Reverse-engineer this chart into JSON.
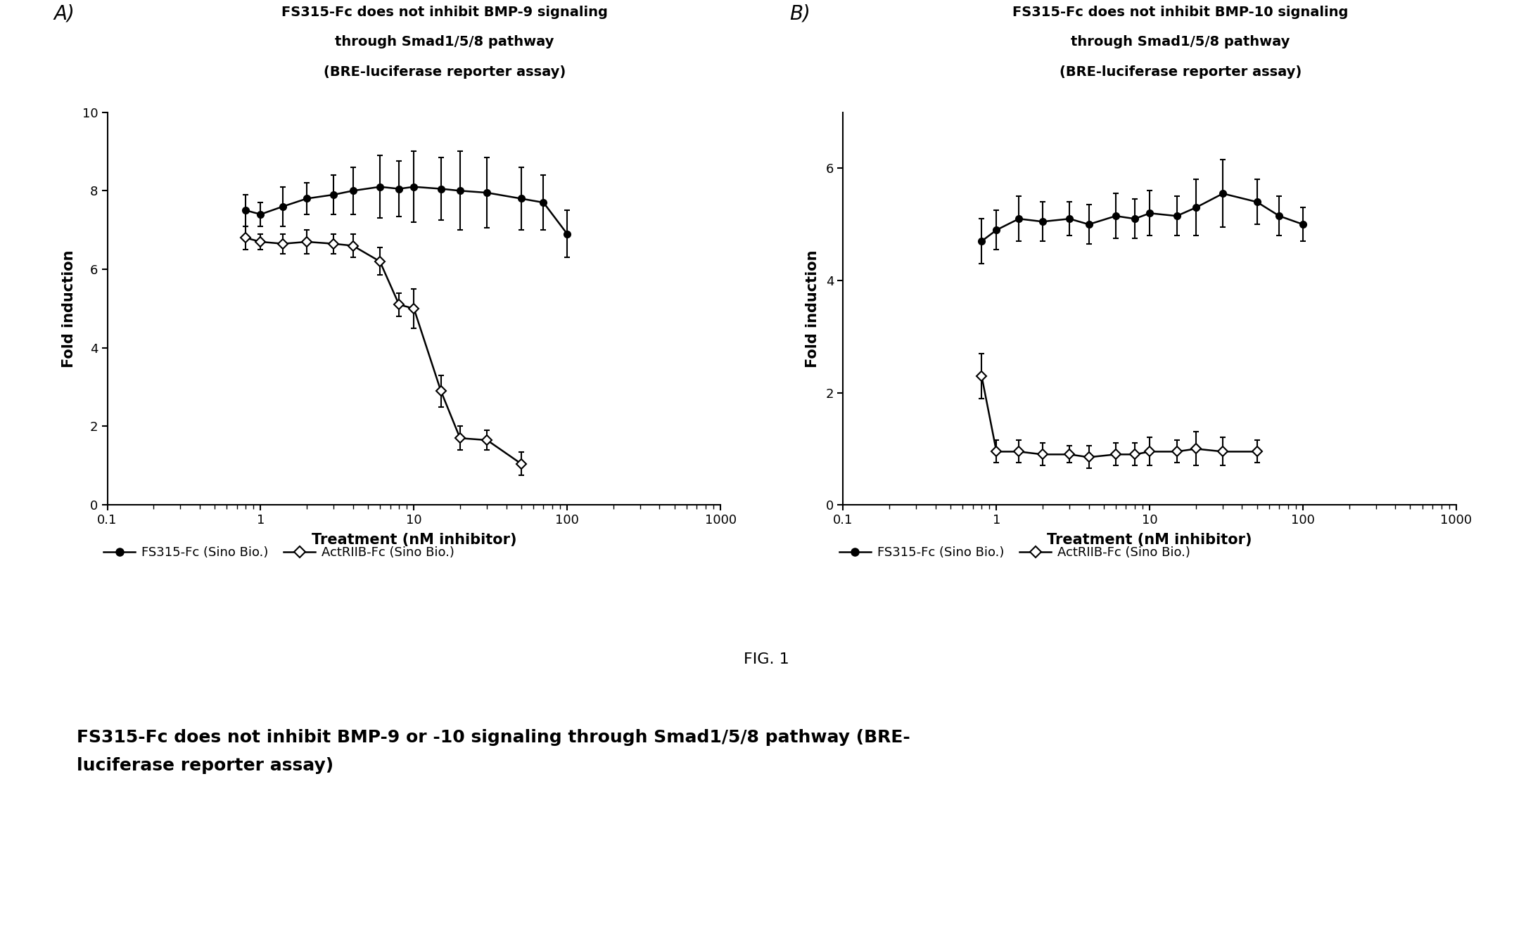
{
  "panel_A": {
    "title_line1": "FS315-Fc does not inhibit BMP-9 signaling",
    "title_line2": "through Smad1/5/8 pathway",
    "title_line3": "(BRE-luciferase reporter assay)",
    "xlabel": "Treatment (nM inhibitor)",
    "ylabel": "Fold induction",
    "ylim": [
      0,
      10
    ],
    "yticks": [
      0,
      2,
      4,
      6,
      8,
      10
    ],
    "xlim": [
      0.1,
      1000
    ],
    "fs315_x": [
      0.8,
      1.0,
      1.4,
      2.0,
      3.0,
      4.0,
      6.0,
      8.0,
      10.0,
      15.0,
      20.0,
      30.0,
      50.0,
      70.0,
      100.0
    ],
    "fs315_y": [
      7.5,
      7.4,
      7.6,
      7.8,
      7.9,
      8.0,
      8.1,
      8.05,
      8.1,
      8.05,
      8.0,
      7.95,
      7.8,
      7.7,
      6.9
    ],
    "fs315_yerr": [
      0.4,
      0.3,
      0.5,
      0.4,
      0.5,
      0.6,
      0.8,
      0.7,
      0.9,
      0.8,
      1.0,
      0.9,
      0.8,
      0.7,
      0.6
    ],
    "actriib_x": [
      0.8,
      1.0,
      1.4,
      2.0,
      3.0,
      4.0,
      6.0,
      8.0,
      10.0,
      15.0,
      20.0,
      30.0,
      50.0
    ],
    "actriib_y": [
      6.8,
      6.7,
      6.65,
      6.7,
      6.65,
      6.6,
      6.2,
      5.1,
      5.0,
      2.9,
      1.7,
      1.65,
      1.05
    ],
    "actriib_yerr": [
      0.3,
      0.2,
      0.25,
      0.3,
      0.25,
      0.3,
      0.35,
      0.3,
      0.5,
      0.4,
      0.3,
      0.25,
      0.3
    ]
  },
  "panel_B": {
    "title_line1": "FS315-Fc does not inhibit BMP-10 signaling",
    "title_line2": "through Smad1/5/8 pathway",
    "title_line3": "(BRE-luciferase reporter assay)",
    "xlabel": "Treatment (nM inhibitor)",
    "ylabel": "Fold induction",
    "ylim": [
      0,
      7
    ],
    "yticks": [
      0,
      2,
      4,
      6
    ],
    "xlim": [
      0.1,
      1000
    ],
    "fs315_x": [
      0.8,
      1.0,
      1.4,
      2.0,
      3.0,
      4.0,
      6.0,
      8.0,
      10.0,
      15.0,
      20.0,
      30.0,
      50.0,
      70.0,
      100.0
    ],
    "fs315_y": [
      4.7,
      4.9,
      5.1,
      5.05,
      5.1,
      5.0,
      5.15,
      5.1,
      5.2,
      5.15,
      5.3,
      5.55,
      5.4,
      5.15,
      5.0
    ],
    "fs315_yerr": [
      0.4,
      0.35,
      0.4,
      0.35,
      0.3,
      0.35,
      0.4,
      0.35,
      0.4,
      0.35,
      0.5,
      0.6,
      0.4,
      0.35,
      0.3
    ],
    "actriib_x": [
      0.8,
      1.0,
      1.4,
      2.0,
      3.0,
      4.0,
      6.0,
      8.0,
      10.0,
      15.0,
      20.0,
      30.0,
      50.0
    ],
    "actriib_y": [
      2.3,
      0.95,
      0.95,
      0.9,
      0.9,
      0.85,
      0.9,
      0.9,
      0.95,
      0.95,
      1.0,
      0.95,
      0.95
    ],
    "actriib_yerr": [
      0.4,
      0.2,
      0.2,
      0.2,
      0.15,
      0.2,
      0.2,
      0.2,
      0.25,
      0.2,
      0.3,
      0.25,
      0.2
    ]
  },
  "legend_fs315": "FS315-Fc (Sino Bio.)",
  "legend_actriib": "ActRIIB-Fc (Sino Bio.)",
  "fig1_label": "FIG. 1",
  "bottom_text": "FS315-Fc does not inhibit BMP-9 or -10 signaling through Smad1/5/8 pathway (BRE-\nluciferase reporter assay)",
  "label_A": "A)",
  "label_B": "B)",
  "background_color": "#ffffff"
}
